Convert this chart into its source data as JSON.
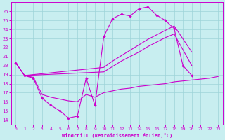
{
  "xlabel": "Windchill (Refroidissement éolien,°C)",
  "xlim": [
    -0.5,
    23.5
  ],
  "ylim": [
    13.5,
    27.0
  ],
  "yticks": [
    14,
    15,
    16,
    17,
    18,
    19,
    20,
    21,
    22,
    23,
    24,
    25,
    26
  ],
  "xticks": [
    0,
    1,
    2,
    3,
    4,
    5,
    6,
    7,
    8,
    9,
    10,
    11,
    12,
    13,
    14,
    15,
    16,
    17,
    18,
    19,
    20,
    21,
    22,
    23
  ],
  "background_color": "#c8eef0",
  "line_color": "#cc00cc",
  "grid_color": "#9dd4d8",
  "line1": {
    "x": [
      0,
      1,
      2,
      3,
      4,
      5,
      6,
      7,
      8,
      9,
      10,
      11,
      12,
      13,
      14,
      15,
      16,
      17,
      18,
      19,
      20
    ],
    "y": [
      20.3,
      18.9,
      18.6,
      16.4,
      15.6,
      15.0,
      14.2,
      14.4,
      18.6,
      15.6,
      23.2,
      25.2,
      25.7,
      25.5,
      26.3,
      26.5,
      25.6,
      25.0,
      24.1,
      20.0,
      18.9
    ]
  },
  "line2": {
    "x": [
      0,
      1,
      10,
      11,
      12,
      13,
      14,
      15,
      16,
      17,
      18,
      20
    ],
    "y": [
      20.3,
      18.9,
      19.8,
      20.5,
      21.1,
      21.7,
      22.3,
      22.9,
      23.4,
      23.9,
      24.4,
      21.5
    ]
  },
  "line3": {
    "x": [
      0,
      1,
      10,
      11,
      12,
      13,
      14,
      15,
      16,
      17,
      18,
      20
    ],
    "y": [
      20.3,
      18.9,
      19.3,
      19.9,
      20.5,
      21.0,
      21.5,
      22.1,
      22.6,
      23.1,
      23.5,
      20.0
    ]
  },
  "line4": {
    "x": [
      1,
      2,
      3,
      4,
      5,
      6,
      7,
      8,
      9,
      10,
      11,
      12,
      13,
      14,
      15,
      16,
      17,
      18,
      19,
      20,
      21,
      22,
      23
    ],
    "y": [
      18.9,
      18.7,
      16.8,
      16.5,
      16.3,
      16.1,
      16.0,
      16.8,
      16.5,
      17.0,
      17.2,
      17.4,
      17.5,
      17.7,
      17.8,
      17.9,
      18.0,
      18.2,
      18.3,
      18.4,
      18.5,
      18.6,
      18.8
    ]
  }
}
